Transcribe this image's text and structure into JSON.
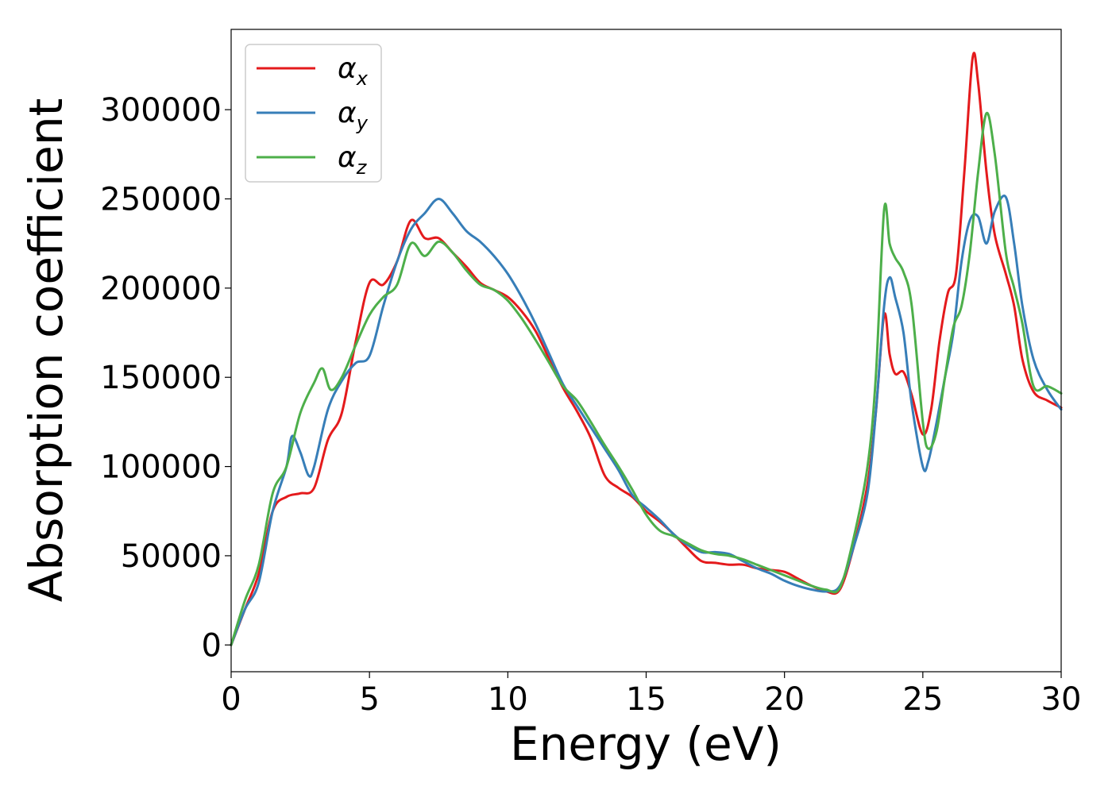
{
  "chart_data": {
    "type": "line",
    "title": "",
    "xlabel": "Energy (eV)",
    "ylabel": "Absorption coefficient",
    "xlim": [
      0,
      30
    ],
    "ylim": [
      -15000,
      345000
    ],
    "x_ticks": [
      0,
      5,
      10,
      15,
      20,
      25,
      30
    ],
    "x_tick_labels": [
      "0",
      "5",
      "10",
      "15",
      "20",
      "25",
      "30"
    ],
    "y_ticks": [
      0,
      50000,
      100000,
      150000,
      200000,
      250000,
      300000
    ],
    "y_tick_labels": [
      "0",
      "50000",
      "100000",
      "150000",
      "200000",
      "250000",
      "300000"
    ],
    "grid": false,
    "legend_position": "top-left",
    "series": [
      {
        "name": "αx",
        "symbol": "α",
        "subscript": "x",
        "color": "#e41a1c",
        "x": [
          0,
          0.5,
          1,
          1.5,
          2,
          2.5,
          3,
          3.5,
          4,
          4.5,
          5,
          5.5,
          6,
          6.5,
          7,
          7.5,
          8,
          8.5,
          9,
          9.5,
          10,
          10.5,
          11,
          11.5,
          12,
          12.5,
          13,
          13.5,
          14,
          14.5,
          15,
          15.5,
          16,
          16.5,
          17,
          17.5,
          18,
          18.5,
          19,
          19.5,
          20,
          20.5,
          21,
          21.5,
          22,
          22.5,
          23,
          23.3,
          23.6,
          23.8,
          24,
          24.3,
          24.6,
          25,
          25.3,
          25.6,
          25.9,
          26.2,
          26.5,
          26.8,
          27,
          27.3,
          27.6,
          28,
          28.3,
          28.6,
          29,
          29.5,
          30
        ],
        "y": [
          0,
          20000,
          40000,
          75000,
          83000,
          85000,
          88000,
          115000,
          130000,
          170000,
          203000,
          202000,
          215000,
          238000,
          228000,
          228000,
          220000,
          212000,
          203000,
          199000,
          195000,
          187000,
          176000,
          160000,
          144000,
          131000,
          116000,
          95000,
          88000,
          83000,
          75000,
          69000,
          62000,
          54000,
          47000,
          46000,
          45000,
          45000,
          43000,
          42000,
          41000,
          37000,
          33000,
          30000,
          31000,
          55000,
          90000,
          130000,
          185000,
          163000,
          152000,
          153000,
          140000,
          118000,
          132000,
          170000,
          197000,
          208000,
          265000,
          329000,
          315000,
          265000,
          230000,
          208000,
          190000,
          160000,
          142000,
          137000,
          133000
        ]
      },
      {
        "name": "αy",
        "symbol": "α",
        "subscript": "y",
        "color": "#377eb8",
        "x": [
          0,
          0.5,
          1,
          1.5,
          2,
          2.2,
          2.5,
          2.8,
          3,
          3.5,
          4,
          4.5,
          5,
          5.5,
          6,
          6.5,
          7,
          7.5,
          8,
          8.5,
          9,
          9.5,
          10,
          10.5,
          11,
          11.5,
          12,
          12.5,
          13,
          13.5,
          14,
          14.5,
          15,
          15.5,
          16,
          16.5,
          17,
          17.5,
          18,
          18.5,
          19,
          19.5,
          20,
          20.5,
          21,
          21.5,
          22,
          22.5,
          23,
          23.3,
          23.6,
          23.8,
          24,
          24.3,
          24.6,
          25,
          25.2,
          25.5,
          25.8,
          26.1,
          26.4,
          26.7,
          27,
          27.3,
          27.6,
          28,
          28.3,
          28.6,
          29,
          29.5,
          30
        ],
        "y": [
          0,
          20000,
          35000,
          75000,
          100000,
          117000,
          108000,
          95000,
          100000,
          132000,
          148000,
          158000,
          162000,
          190000,
          215000,
          233000,
          242000,
          250000,
          242000,
          232000,
          226000,
          218000,
          208000,
          195000,
          180000,
          163000,
          146000,
          134000,
          122000,
          110000,
          98000,
          84000,
          77000,
          70000,
          62000,
          56000,
          52000,
          52000,
          51000,
          47000,
          43000,
          40000,
          36000,
          33000,
          31000,
          30000,
          33000,
          55000,
          85000,
          130000,
          190000,
          206000,
          195000,
          175000,
          135000,
          100000,
          103000,
          125000,
          150000,
          175000,
          215000,
          238000,
          240000,
          225000,
          243000,
          251000,
          225000,
          190000,
          160000,
          143000,
          132000
        ]
      },
      {
        "name": "αz",
        "symbol": "α",
        "subscript": "z",
        "color": "#4daf4a",
        "x": [
          0,
          0.5,
          1,
          1.5,
          2,
          2.5,
          3,
          3.3,
          3.6,
          4,
          4.5,
          5,
          5.5,
          6,
          6.5,
          7,
          7.5,
          8,
          8.5,
          9,
          9.5,
          10,
          10.5,
          11,
          11.5,
          12,
          12.5,
          13,
          13.5,
          14,
          14.5,
          15,
          15.5,
          16,
          16.5,
          17,
          17.5,
          18,
          18.5,
          19,
          19.5,
          20,
          20.5,
          21,
          21.5,
          22,
          22.5,
          23,
          23.3,
          23.6,
          23.8,
          24,
          24.3,
          24.6,
          25,
          25.2,
          25.5,
          25.8,
          26.1,
          26.4,
          26.7,
          27,
          27.3,
          27.6,
          28,
          28.3,
          28.6,
          29,
          29.5,
          30
        ],
        "y": [
          0,
          25000,
          45000,
          85000,
          100000,
          130000,
          147000,
          155000,
          143000,
          150000,
          168000,
          185000,
          195000,
          202000,
          225000,
          218000,
          226000,
          220000,
          210000,
          202000,
          199000,
          193000,
          183000,
          171000,
          158000,
          145000,
          137000,
          125000,
          112000,
          100000,
          87000,
          73000,
          64000,
          61000,
          57000,
          53000,
          51000,
          50000,
          48000,
          45000,
          42000,
          39000,
          36000,
          33000,
          31000,
          32000,
          60000,
          100000,
          150000,
          244000,
          225000,
          217000,
          209000,
          190000,
          125000,
          110000,
          120000,
          150000,
          178000,
          190000,
          220000,
          265000,
          298000,
          275000,
          220000,
          200000,
          180000,
          145000,
          145000,
          141000
        ]
      }
    ]
  }
}
